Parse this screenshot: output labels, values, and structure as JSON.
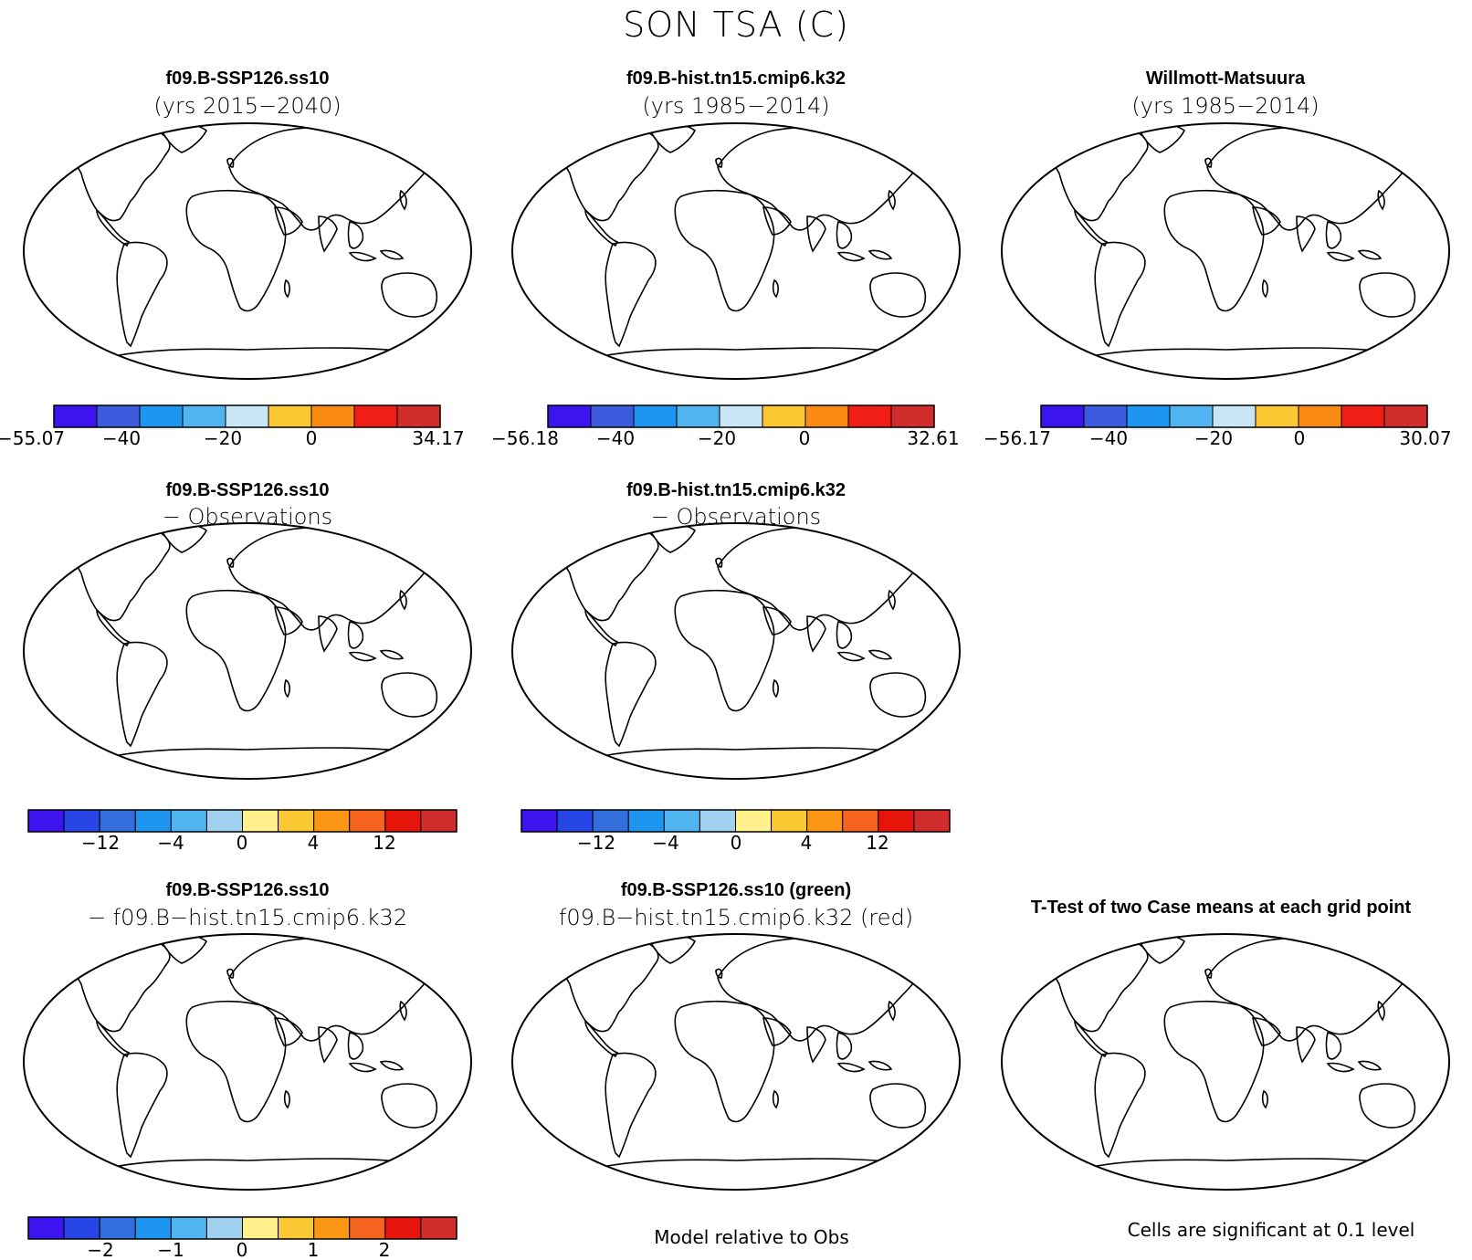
{
  "page_title": "SON TSA (C)",
  "panels": [
    {
      "id": "p1",
      "line1": "f09.B-SSP126.ss10",
      "line2": "(yrs 2015−2040)",
      "scheme": "abs"
    },
    {
      "id": "p2",
      "line1": "f09.B-hist.tn15.cmip6.k32",
      "line2": "(yrs 1985−2014)",
      "scheme": "abs"
    },
    {
      "id": "p3",
      "line1": "Willmott-Matsuura",
      "line2": "(yrs 1985−2014)",
      "scheme": "abs"
    },
    {
      "id": "p4",
      "line1": "f09.B-SSP126.ss10",
      "line2": "− Observations",
      "scheme": "bias1"
    },
    {
      "id": "p5",
      "line1": "f09.B-hist.tn15.cmip6.k32",
      "line2": "− Observations",
      "scheme": "bias2"
    },
    {
      "id": "p6",
      "line1": "f09.B-SSP126.ss10",
      "line2": "− f09.B−hist.tn15.cmip6.k32",
      "scheme": "diff"
    },
    {
      "id": "p7",
      "line1": "f09.B-SSP126.ss10 (green)",
      "line2": "f09.B−hist.tn15.cmip6.k32 (red)",
      "scheme": "compare"
    },
    {
      "id": "p8",
      "line1": "T-Test of two Case means at each grid point",
      "line2": "",
      "scheme": "ttest"
    }
  ],
  "colorbars": {
    "cb1": {
      "colors": [
        "#3c14f0",
        "#3c5adc",
        "#1e96f0",
        "#50b4f0",
        "#c8e6f5",
        "#fac832",
        "#fa8c14",
        "#f01e14",
        "#d22d2d"
      ],
      "labels": [
        "−55.07",
        "−40",
        "−20",
        "0",
        "34.17"
      ]
    },
    "cb2": {
      "colors": [
        "#3c14f0",
        "#3c5adc",
        "#1e96f0",
        "#50b4f0",
        "#c8e6f5",
        "#fac832",
        "#fa8c14",
        "#f01e14",
        "#d22d2d"
      ],
      "labels": [
        "−56.18",
        "−40",
        "−20",
        "0",
        "32.61"
      ]
    },
    "cb3": {
      "colors": [
        "#3c14f0",
        "#3c5adc",
        "#1e96f0",
        "#50b4f0",
        "#c8e6f5",
        "#fac832",
        "#fa8c14",
        "#f01e14",
        "#d22d2d"
      ],
      "labels": [
        "−56.17",
        "−40",
        "−20",
        "0",
        "30.07"
      ]
    },
    "cb4": {
      "colors": [
        "#3c14f0",
        "#2846e6",
        "#326edc",
        "#1e96f0",
        "#50b4f0",
        "#a0d2f0",
        "#fff08c",
        "#fac832",
        "#fa9614",
        "#f5641e",
        "#e6140a",
        "#d22d2d"
      ],
      "labels": [
        "−12",
        "−4",
        "0",
        "4",
        "12"
      ]
    },
    "cb5": {
      "colors": [
        "#3c14f0",
        "#2846e6",
        "#326edc",
        "#1e96f0",
        "#50b4f0",
        "#a0d2f0",
        "#fff08c",
        "#fac832",
        "#fa9614",
        "#f5641e",
        "#e6140a",
        "#d22d2d"
      ],
      "labels": [
        "−12",
        "−4",
        "0",
        "4",
        "12"
      ]
    },
    "cb6": {
      "colors": [
        "#3c14f0",
        "#2846e6",
        "#326edc",
        "#1e96f0",
        "#50b4f0",
        "#a0d2f0",
        "#fff08c",
        "#fac832",
        "#fa9614",
        "#f5641e",
        "#e6140a",
        "#d22d2d"
      ],
      "labels": [
        "−2",
        "−1",
        "0",
        "1",
        "2"
      ]
    }
  },
  "palettes": {
    "abs": {
      "land": "#d22d2d",
      "north": "#fa8c14",
      "north2": "#fac832",
      "arctic": "#c8e6f5",
      "ant1": "#50b4f0",
      "ant2": "#3c5adc",
      "ant3": "#3c14f0"
    },
    "bias1": {
      "land": "#fac832",
      "a1": "#fff08c",
      "a2": "#a0d2f0",
      "a3": "#fa9614",
      "ant1": "#50b4f0",
      "ant2": "#fff08c"
    },
    "bias2": {
      "land": "#fff08c",
      "a1": "#fac832",
      "a2": "#a0d2f0",
      "a3": "#50b4f0",
      "ant1": "#50b4f0",
      "ant2": "#fff08c"
    },
    "diff": {
      "land": "#fa9614",
      "a1": "#f5641e",
      "a2": "#e6140a",
      "a3": "#fac832",
      "ant1": "#fac832",
      "ant2": "#fff08c"
    },
    "compare": {
      "land": "#ff0000",
      "green": "#00ff00"
    },
    "ttest": {
      "land": "#ff0000"
    }
  },
  "footers": {
    "model_rel": "Model relative to Obs",
    "cells_sig": "Cells are significant at 0.1 level"
  }
}
